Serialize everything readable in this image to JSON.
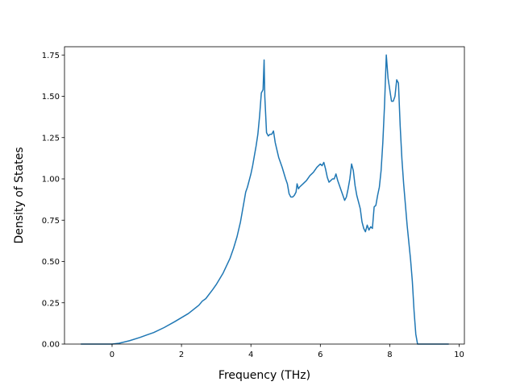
{
  "chart_data": {
    "type": "line",
    "title": "",
    "xlabel": "Frequency (THz)",
    "ylabel": "Density of States",
    "xlim": [
      -1.37,
      10.15
    ],
    "ylim": [
      0,
      1.8
    ],
    "xticks": [
      0,
      2,
      4,
      6,
      8,
      10
    ],
    "xtick_labels": [
      "0",
      "2",
      "4",
      "6",
      "8",
      "10"
    ],
    "yticks": [
      0,
      0.25,
      0.5,
      0.75,
      1.0,
      1.25,
      1.5,
      1.75
    ],
    "ytick_labels": [
      "0.00",
      "0.25",
      "0.50",
      "0.75",
      "1.00",
      "1.25",
      "1.50",
      "1.75"
    ],
    "grid": false,
    "legend": "none",
    "line_color": "#1f77b4",
    "series": [
      {
        "x": [
          -0.9,
          0.0,
          0.2,
          0.5,
          0.8,
          1.0,
          1.2,
          1.5,
          1.8,
          2.0,
          2.2,
          2.5,
          2.6,
          2.7,
          2.9,
          3.0,
          3.2,
          3.4,
          3.5,
          3.6,
          3.7,
          3.75,
          3.8,
          3.85,
          3.9,
          4.0,
          4.05,
          4.1,
          4.15,
          4.2,
          4.25,
          4.3,
          4.35,
          4.38,
          4.4,
          4.45,
          4.5,
          4.55,
          4.6,
          4.65,
          4.7,
          4.8,
          4.9,
          5.0,
          5.05,
          5.1,
          5.15,
          5.2,
          5.25,
          5.3,
          5.33,
          5.37,
          5.4,
          5.5,
          5.6,
          5.7,
          5.8,
          5.9,
          5.95,
          6.0,
          6.05,
          6.1,
          6.15,
          6.2,
          6.25,
          6.3,
          6.35,
          6.4,
          6.45,
          6.5,
          6.6,
          6.7,
          6.75,
          6.8,
          6.85,
          6.9,
          6.95,
          7.0,
          7.05,
          7.1,
          7.15,
          7.2,
          7.25,
          7.3,
          7.35,
          7.4,
          7.45,
          7.5,
          7.55,
          7.6,
          7.65,
          7.7,
          7.75,
          7.8,
          7.85,
          7.9,
          7.95,
          8.0,
          8.05,
          8.1,
          8.15,
          8.2,
          8.25,
          8.3,
          8.35,
          8.4,
          8.5,
          8.6,
          8.65,
          8.7,
          8.75,
          8.8,
          9.0,
          9.7
        ],
        "y": [
          0.0,
          0.0,
          0.005,
          0.02,
          0.04,
          0.055,
          0.07,
          0.1,
          0.135,
          0.16,
          0.185,
          0.235,
          0.26,
          0.275,
          0.33,
          0.36,
          0.43,
          0.52,
          0.58,
          0.65,
          0.74,
          0.8,
          0.86,
          0.92,
          0.95,
          1.03,
          1.08,
          1.14,
          1.2,
          1.27,
          1.38,
          1.52,
          1.54,
          1.72,
          1.5,
          1.28,
          1.26,
          1.27,
          1.27,
          1.29,
          1.22,
          1.13,
          1.07,
          1.0,
          0.97,
          0.91,
          0.89,
          0.89,
          0.9,
          0.92,
          0.97,
          0.94,
          0.95,
          0.97,
          0.99,
          1.02,
          1.04,
          1.07,
          1.08,
          1.09,
          1.08,
          1.1,
          1.06,
          1.01,
          0.98,
          0.99,
          1.0,
          1.0,
          1.03,
          0.99,
          0.93,
          0.87,
          0.89,
          0.94,
          1.0,
          1.09,
          1.05,
          0.96,
          0.9,
          0.86,
          0.82,
          0.74,
          0.7,
          0.68,
          0.72,
          0.69,
          0.71,
          0.7,
          0.83,
          0.84,
          0.9,
          0.95,
          1.05,
          1.22,
          1.45,
          1.75,
          1.61,
          1.54,
          1.47,
          1.47,
          1.5,
          1.6,
          1.58,
          1.32,
          1.12,
          0.97,
          0.72,
          0.51,
          0.38,
          0.2,
          0.06,
          0.0,
          0.0,
          0.0
        ]
      }
    ]
  }
}
